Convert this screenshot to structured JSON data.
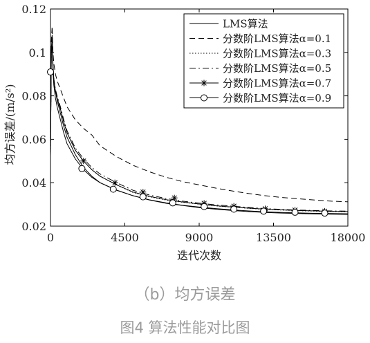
{
  "chart_data": {
    "type": "line",
    "xlabel": "迭代次数",
    "ylabel": "均方误差/(m/s²)",
    "xlim": [
      0,
      18000
    ],
    "ylim": [
      0.02,
      0.12
    ],
    "xticks": [
      0,
      4500,
      9000,
      13500,
      18000
    ],
    "yticks": [
      0.02,
      0.04,
      0.06,
      0.08,
      0.1,
      0.12
    ],
    "xtick_labels": [
      "0",
      "4500",
      "9000",
      "13500",
      "18000"
    ],
    "ytick_labels": [
      "0.02",
      "0.04",
      "0.06",
      "0.08",
      "0.1",
      "0.12"
    ],
    "grid": false,
    "legend_position": "top-right",
    "series": [
      {
        "name": "LMS算法",
        "style": "solid",
        "marker": "none",
        "x": [
          0,
          50,
          100,
          150,
          200,
          300,
          400,
          600,
          800,
          1000,
          1500,
          2000,
          2500,
          3000,
          4000,
          5000,
          6000,
          7000,
          8000,
          9000,
          10000,
          11000,
          12000,
          13000,
          14000,
          15000,
          16000,
          17000,
          18000
        ],
        "y": [
          0.052,
          0.1,
          0.108,
          0.095,
          0.088,
          0.082,
          0.078,
          0.072,
          0.066,
          0.061,
          0.053,
          0.047,
          0.043,
          0.04,
          0.0365,
          0.034,
          0.032,
          0.0305,
          0.0295,
          0.0285,
          0.0278,
          0.0272,
          0.0267,
          0.0263,
          0.026,
          0.0258,
          0.0256,
          0.0255,
          0.0254
        ]
      },
      {
        "name": "分数阶LMS算法α=0.1",
        "style": "dashed",
        "marker": "none",
        "x": [
          0,
          50,
          100,
          150,
          200,
          300,
          400,
          600,
          800,
          1000,
          1500,
          2000,
          2500,
          3000,
          4000,
          5000,
          6000,
          7000,
          8000,
          9000,
          10000,
          11000,
          12000,
          13000,
          14000,
          15000,
          16000,
          17000,
          18000
        ],
        "y": [
          0.055,
          0.105,
          0.112,
          0.1,
          0.095,
          0.09,
          0.087,
          0.083,
          0.079,
          0.075,
          0.069,
          0.065,
          0.062,
          0.057,
          0.052,
          0.048,
          0.045,
          0.0425,
          0.0405,
          0.039,
          0.0375,
          0.0362,
          0.035,
          0.034,
          0.0332,
          0.0326,
          0.032,
          0.0315,
          0.0312
        ]
      },
      {
        "name": "分数阶LMS算法α=0.3",
        "style": "dotted",
        "marker": "none",
        "x": [
          0,
          50,
          100,
          150,
          200,
          300,
          400,
          600,
          800,
          1000,
          1500,
          2000,
          2500,
          3000,
          4000,
          5000,
          6000,
          7000,
          8000,
          9000,
          10000,
          11000,
          12000,
          13000,
          14000,
          15000,
          16000,
          17000,
          18000
        ],
        "y": [
          0.053,
          0.1,
          0.106,
          0.093,
          0.087,
          0.082,
          0.079,
          0.074,
          0.068,
          0.063,
          0.055,
          0.05,
          0.046,
          0.043,
          0.039,
          0.0355,
          0.0335,
          0.032,
          0.031,
          0.0301,
          0.0293,
          0.0287,
          0.0282,
          0.0277,
          0.0274,
          0.0271,
          0.0269,
          0.0267,
          0.0266
        ]
      },
      {
        "name": "分数阶LMS算法α=0.5",
        "style": "dashdot",
        "marker": "none",
        "x": [
          0,
          50,
          100,
          150,
          200,
          300,
          400,
          600,
          800,
          1000,
          1500,
          2000,
          2500,
          3000,
          4000,
          5000,
          6000,
          7000,
          8000,
          9000,
          10000,
          11000,
          12000,
          13000,
          14000,
          15000,
          16000,
          17000,
          18000
        ],
        "y": [
          0.053,
          0.1,
          0.107,
          0.094,
          0.088,
          0.083,
          0.08,
          0.075,
          0.069,
          0.064,
          0.056,
          0.051,
          0.047,
          0.044,
          0.04,
          0.0365,
          0.0343,
          0.0327,
          0.0315,
          0.0306,
          0.0298,
          0.0292,
          0.0286,
          0.0281,
          0.0277,
          0.0274,
          0.0272,
          0.027,
          0.0269
        ]
      },
      {
        "name": "分数阶LMS算法α=0.7",
        "style": "solid",
        "marker": "star",
        "x": [
          0,
          50,
          100,
          150,
          200,
          300,
          400,
          600,
          800,
          1000,
          1500,
          2000,
          2500,
          3000,
          4000,
          5000,
          6000,
          7000,
          8000,
          9000,
          10000,
          11000,
          12000,
          13000,
          14000,
          15000,
          16000,
          17000,
          18000
        ],
        "y": [
          0.053,
          0.1,
          0.106,
          0.093,
          0.087,
          0.082,
          0.079,
          0.074,
          0.068,
          0.063,
          0.055,
          0.05,
          0.046,
          0.043,
          0.039,
          0.0357,
          0.0337,
          0.0322,
          0.0311,
          0.0302,
          0.0294,
          0.0288,
          0.0283,
          0.0278,
          0.0275,
          0.0272,
          0.027,
          0.0268,
          0.0267
        ],
        "marker_x": [
          0,
          2000,
          3900,
          5600,
          7500,
          9300,
          11100,
          13000,
          14800,
          16600
        ],
        "marker_y": [
          0.091,
          0.05,
          0.04,
          0.0357,
          0.033,
          0.0305,
          0.0292,
          0.028,
          0.0274,
          0.0269
        ]
      },
      {
        "name": "分数阶LMS算法α=0.9",
        "style": "solid",
        "marker": "circle",
        "x": [
          0,
          50,
          100,
          150,
          200,
          300,
          400,
          600,
          800,
          1000,
          1500,
          2000,
          2500,
          3000,
          4000,
          5000,
          6000,
          7000,
          8000,
          9000,
          10000,
          11000,
          12000,
          13000,
          14000,
          15000,
          16000,
          17000,
          18000
        ],
        "y": [
          0.052,
          0.1,
          0.105,
          0.091,
          0.085,
          0.079,
          0.075,
          0.069,
          0.063,
          0.058,
          0.051,
          0.046,
          0.0425,
          0.04,
          0.0366,
          0.034,
          0.0321,
          0.0307,
          0.0296,
          0.0288,
          0.0281,
          0.0275,
          0.027,
          0.0266,
          0.0263,
          0.0261,
          0.0259,
          0.0258,
          0.0257
        ],
        "marker_x": [
          0,
          1900,
          3800,
          5600,
          7400,
          9300,
          11100,
          12900,
          14800,
          16600
        ],
        "marker_y": [
          0.091,
          0.0465,
          0.037,
          0.0335,
          0.0307,
          0.029,
          0.0278,
          0.0269,
          0.0264,
          0.026
        ]
      }
    ]
  },
  "captions": {
    "sub": "（b）均方误差",
    "main": "图4 算法性能对比图"
  }
}
